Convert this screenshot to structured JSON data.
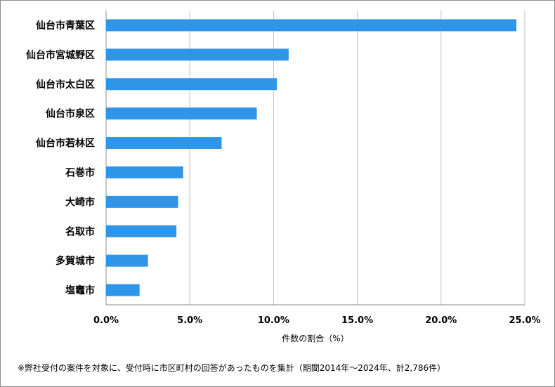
{
  "chart_data": {
    "type": "bar",
    "orientation": "horizontal",
    "categories": [
      "仙台市青葉区",
      "仙台市宮城野区",
      "仙台市太白区",
      "仙台市泉区",
      "仙台市若林区",
      "石巻市",
      "大崎市",
      "名取市",
      "多賀城市",
      "塩竈市"
    ],
    "values": [
      24.5,
      10.9,
      10.2,
      9.0,
      6.9,
      4.6,
      4.3,
      4.2,
      2.5,
      2.0
    ],
    "xlabel": "件数の割合（%）",
    "ylabel": "",
    "xlim": [
      0,
      25
    ],
    "xticks": [
      "0.0%",
      "5.0%",
      "10.0%",
      "15.0%",
      "20.0%",
      "25.0%"
    ],
    "grid": "vertical",
    "bar_color": "#2E95E8",
    "grid_color": "#BFBFBF"
  },
  "footnote": "※弊社受付の案件を対象に、受付時に市区町村の回答があったものを集計（期間2014年～2024年、計2,786件）"
}
